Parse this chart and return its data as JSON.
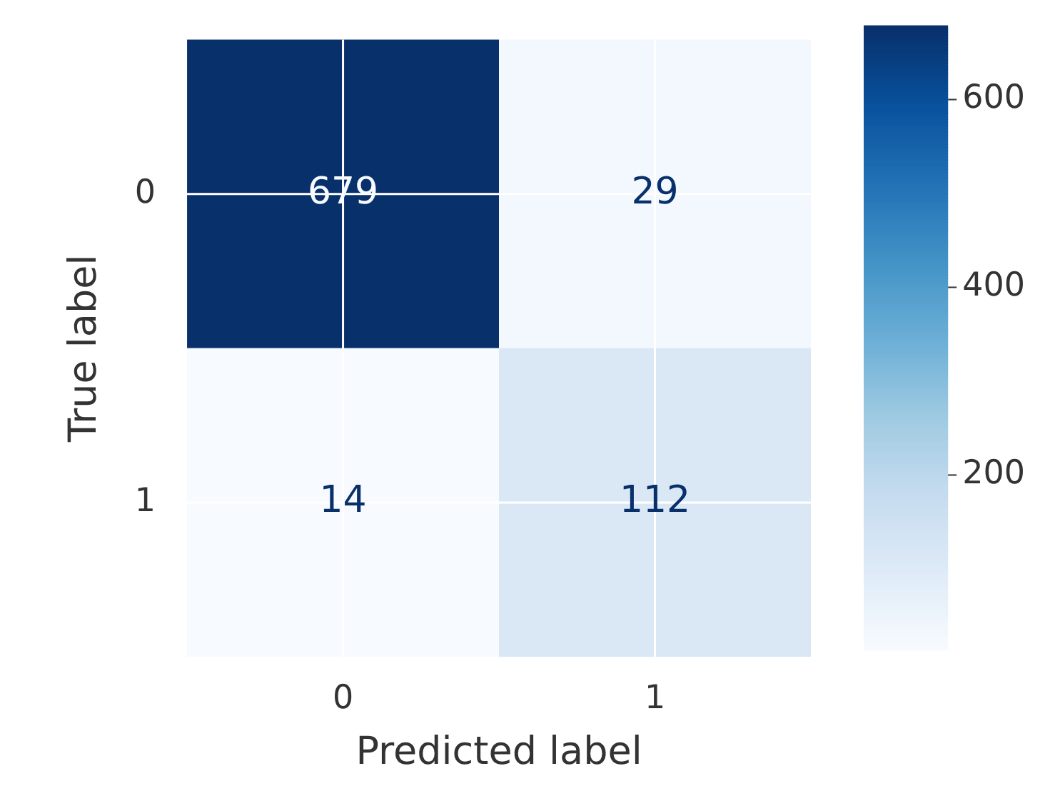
{
  "chart_data": {
    "type": "heatmap",
    "xlabel": "Predicted label",
    "ylabel": "True label",
    "categories": [
      "0",
      "1"
    ],
    "y_categories": [
      "0",
      "1"
    ],
    "cells": [
      [
        679,
        29
      ],
      [
        14,
        112
      ]
    ],
    "clim": [
      14,
      679
    ],
    "cticks": [
      200,
      400,
      600
    ],
    "data_labels": true,
    "grid": true
  }
}
